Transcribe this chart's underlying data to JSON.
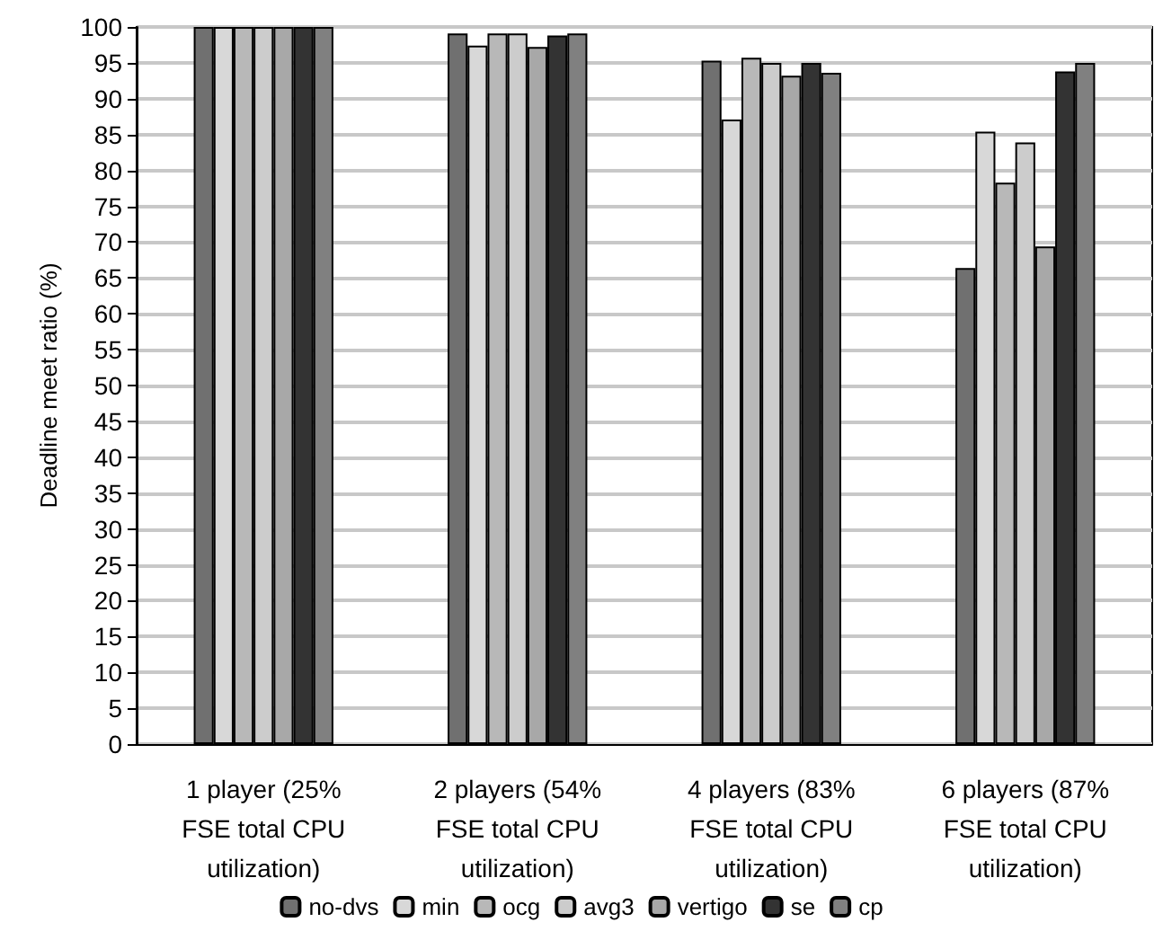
{
  "chart_data": {
    "type": "bar",
    "ylabel": "Deadline meet ratio (%)",
    "categories": [
      "1 player (25%\nFSE total CPU\nutilization)",
      "2 players (54%\nFSE total CPU\nutilization)",
      "4 players (83%\nFSE total CPU\nutilization)",
      "6 players (87%\nFSE total CPU\nutilization)"
    ],
    "series": [
      {
        "name": "no-dvs",
        "color": "#707070",
        "values": [
          100,
          99.1,
          95.3,
          66.4
        ]
      },
      {
        "name": "min",
        "color": "#d8d8d8",
        "values": [
          100,
          97.4,
          87.1,
          85.4
        ]
      },
      {
        "name": "ocg",
        "color": "#b8b8b8",
        "values": [
          100,
          99.1,
          95.7,
          78.3
        ]
      },
      {
        "name": "avg3",
        "color": "#cccccc",
        "values": [
          100,
          99.1,
          95,
          83.9
        ]
      },
      {
        "name": "vertigo",
        "color": "#a8a8a8",
        "values": [
          100,
          97.2,
          93.2,
          69.4
        ]
      },
      {
        "name": "se",
        "color": "#333333",
        "values": [
          100,
          98.8,
          95,
          93.8
        ]
      },
      {
        "name": "cp",
        "color": "#808080",
        "values": [
          100,
          99.1,
          93.6,
          95
        ]
      }
    ],
    "ylim": [
      0,
      100
    ],
    "yticks": [
      0,
      5,
      10,
      15,
      20,
      25,
      30,
      35,
      40,
      45,
      50,
      55,
      60,
      65,
      70,
      75,
      80,
      85,
      90,
      95,
      100
    ],
    "grid": "y",
    "legend": "bottom"
  }
}
